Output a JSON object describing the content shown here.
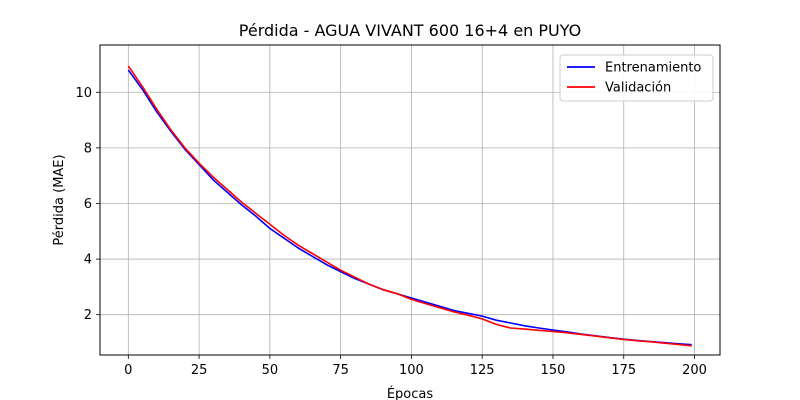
{
  "chart_data": {
    "type": "line",
    "title": "Pérdida - AGUA VIVANT 600 16+4 en PUYO",
    "xlabel": "Épocas",
    "ylabel": "Pérdida (MAE)",
    "xlim": [
      -10,
      209
    ],
    "ylim": [
      0.55,
      11.7
    ],
    "xticks": [
      0,
      25,
      50,
      75,
      100,
      125,
      150,
      175,
      200
    ],
    "yticks": [
      2,
      4,
      6,
      8,
      10
    ],
    "grid": true,
    "legend_position": "top-right",
    "series": [
      {
        "name": "Entrenamiento",
        "color": "#0000ff",
        "x": [
          0,
          5,
          10,
          15,
          20,
          25,
          30,
          35,
          40,
          45,
          50,
          55,
          60,
          65,
          70,
          75,
          80,
          85,
          90,
          95,
          100,
          105,
          110,
          115,
          120,
          125,
          130,
          135,
          140,
          145,
          150,
          155,
          160,
          165,
          170,
          175,
          180,
          185,
          190,
          195,
          199
        ],
        "values": [
          10.8,
          10.1,
          9.3,
          8.6,
          7.95,
          7.4,
          6.85,
          6.4,
          5.95,
          5.55,
          5.1,
          4.75,
          4.4,
          4.1,
          3.8,
          3.55,
          3.3,
          3.1,
          2.9,
          2.75,
          2.6,
          2.45,
          2.3,
          2.15,
          2.05,
          1.95,
          1.8,
          1.7,
          1.6,
          1.52,
          1.45,
          1.38,
          1.3,
          1.24,
          1.18,
          1.12,
          1.07,
          1.03,
          0.99,
          0.95,
          0.92
        ]
      },
      {
        "name": "Validación",
        "color": "#ff0000",
        "x": [
          0,
          5,
          10,
          15,
          20,
          25,
          30,
          35,
          40,
          45,
          50,
          55,
          60,
          65,
          70,
          75,
          80,
          85,
          90,
          95,
          100,
          105,
          110,
          115,
          120,
          125,
          130,
          135,
          140,
          145,
          150,
          155,
          160,
          165,
          170,
          175,
          180,
          185,
          190,
          195,
          199
        ],
        "values": [
          10.95,
          10.2,
          9.4,
          8.65,
          8.0,
          7.45,
          6.95,
          6.5,
          6.05,
          5.65,
          5.25,
          4.85,
          4.5,
          4.2,
          3.9,
          3.6,
          3.35,
          3.1,
          2.9,
          2.75,
          2.55,
          2.4,
          2.25,
          2.1,
          1.98,
          1.85,
          1.65,
          1.52,
          1.48,
          1.44,
          1.4,
          1.35,
          1.29,
          1.23,
          1.17,
          1.11,
          1.06,
          1.02,
          0.97,
          0.92,
          0.88
        ]
      }
    ]
  }
}
